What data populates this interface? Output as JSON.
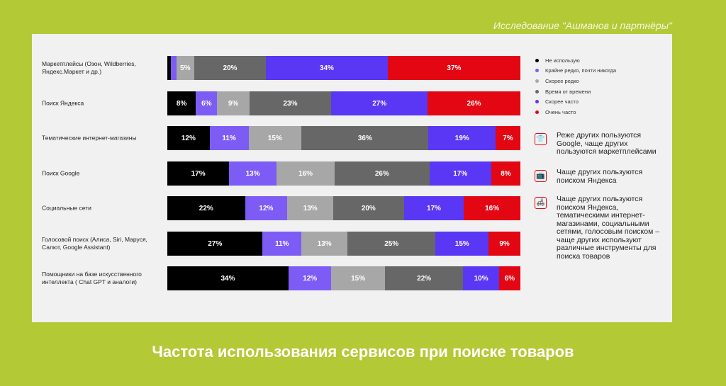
{
  "source": "Исследование \"Ашманов и партнёры\"",
  "title": "Частота использования сервисов при поиске товаров",
  "chart_data": {
    "type": "bar",
    "orientation": "horizontal-stacked-100",
    "title": "Частота использования сервисов при поиске товаров",
    "legend_position": "right",
    "series": [
      {
        "name": "Не использую",
        "color": "#000000"
      },
      {
        "name": "Крайне редко, почти никогда",
        "color": "#7d5cf6"
      },
      {
        "name": "Скорее редко",
        "color": "#a7a7a7"
      },
      {
        "name": "Время от времени",
        "color": "#676767"
      },
      {
        "name": "Скорее часто",
        "color": "#5937f5"
      },
      {
        "name": "Очень часто",
        "color": "#e30613"
      }
    ],
    "categories": [
      "Маркетплейсы (Озон, Wildberries, Яндекс.Маркет и др.)",
      "Поиск Яндекса",
      "Тематические интернет-магазины",
      "Поиск Google",
      "Социальные сети",
      "Голосовой поиск (Алиса, Siri, Маруся, Салют, Google Assistant)",
      "Помощники на базе искусственного интеллекта ( Chat GPT и аналоги)"
    ],
    "values": [
      [
        1,
        1.5,
        5,
        20,
        34,
        37
      ],
      [
        8,
        6,
        9,
        23,
        27,
        26
      ],
      [
        12,
        11,
        15,
        36,
        19,
        7
      ],
      [
        17,
        13,
        16,
        26,
        17,
        8
      ],
      [
        22,
        12,
        13,
        20,
        17,
        16
      ],
      [
        27,
        11,
        13,
        25,
        15,
        9
      ],
      [
        34,
        12,
        15,
        22,
        10,
        6
      ]
    ],
    "labels": [
      [
        "",
        "",
        "5%",
        "20%",
        "34%",
        "37%"
      ],
      [
        "8%",
        "6%",
        "9%",
        "23%",
        "27%",
        "26%"
      ],
      [
        "12%",
        "11%",
        "15%",
        "36%",
        "19%",
        "7%"
      ],
      [
        "17%",
        "13%",
        "16%",
        "26%",
        "17%",
        "8%"
      ],
      [
        "22%",
        "12%",
        "13%",
        "20%",
        "17%",
        "16%"
      ],
      [
        "27%",
        "11%",
        "13%",
        "25%",
        "15%",
        "9%"
      ],
      [
        "34%",
        "12%",
        "15%",
        "22%",
        "10%",
        "6%"
      ]
    ]
  },
  "notes": [
    {
      "icon": "shirt-icon",
      "glyph": "👕",
      "text": "Реже других пользуются Google, чаще других пользуются маркетплейсами"
    },
    {
      "icon": "tv-icon",
      "glyph": "📺",
      "text": "Чаще других пользуются поиском Яндекса"
    },
    {
      "icon": "armchair-icon",
      "glyph": "🛋",
      "text": "Чаще других пользуются поиском Яндекса, тематическими интернет-магазинами, социальными сетями, голосовым поиском – чаще других используют различные инструменты для поиска товаров"
    }
  ]
}
